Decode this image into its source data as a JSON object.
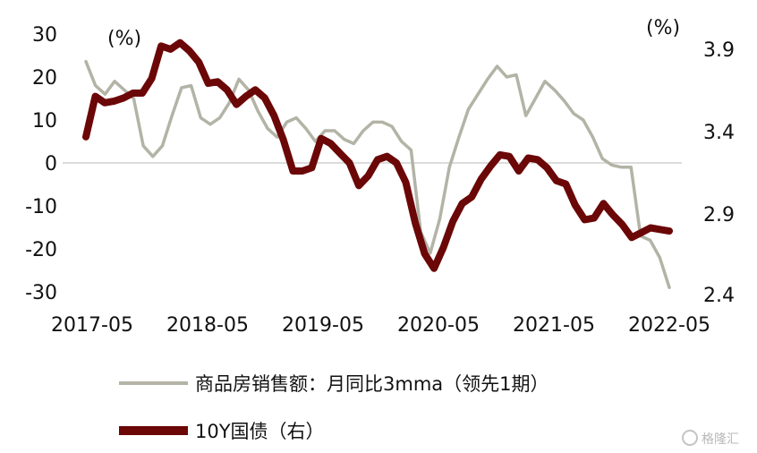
{
  "chart_data": {
    "type": "line",
    "x_tick_labels": [
      "2017-05",
      "2018-05",
      "2019-05",
      "2020-05",
      "2021-05",
      "2022-05"
    ],
    "left_axis": {
      "unit": "(%)",
      "ylim": [
        -30,
        30
      ],
      "ticks": [
        "30",
        "20",
        "10",
        "0",
        "-10",
        "-20",
        "-30"
      ]
    },
    "right_axis": {
      "unit": "(%)",
      "ylim": [
        2.4,
        3.9
      ],
      "ticks": [
        "3.9",
        "3.4",
        "2.9",
        "2.4"
      ]
    },
    "zero_line": true,
    "series": [
      {
        "name": "商品房销售额：月同比3mma（领先1期）",
        "axis": "left",
        "color": "#b3b3a6",
        "values": [
          23.6,
          18,
          16,
          19,
          17,
          15,
          4,
          1.5,
          4,
          11,
          17.5,
          18,
          10.5,
          9,
          10.5,
          14,
          19.5,
          17,
          12,
          8,
          6,
          9.5,
          10.5,
          8,
          5,
          7.5,
          7.5,
          5.5,
          4.5,
          7.5,
          9.5,
          9.5,
          8.5,
          5,
          3,
          -16,
          -21,
          -13,
          -1,
          6,
          12.5,
          16,
          19.5,
          22.5,
          20,
          20.5,
          11,
          15,
          19,
          17,
          14.5,
          11.5,
          10,
          6,
          1,
          -0.5,
          -1,
          -1,
          -17,
          -18,
          -22,
          -29
        ]
      },
      {
        "name": "10Y国债（右）",
        "axis": "right",
        "color": "#6b0707",
        "values": [
          3.36,
          3.61,
          3.57,
          3.58,
          3.6,
          3.63,
          3.63,
          3.72,
          3.92,
          3.9,
          3.94,
          3.89,
          3.82,
          3.69,
          3.7,
          3.65,
          3.56,
          3.61,
          3.65,
          3.6,
          3.49,
          3.34,
          3.15,
          3.15,
          3.17,
          3.35,
          3.32,
          3.26,
          3.2,
          3.06,
          3.12,
          3.22,
          3.24,
          3.2,
          3.08,
          2.83,
          2.64,
          2.55,
          2.68,
          2.84,
          2.95,
          2.99,
          3.1,
          3.18,
          3.25,
          3.24,
          3.15,
          3.23,
          3.22,
          3.17,
          3.09,
          3.07,
          2.94,
          2.85,
          2.86,
          2.95,
          2.88,
          2.82,
          2.74,
          2.77,
          2.8,
          2.79,
          2.78
        ]
      }
    ],
    "legend": {
      "placement": "bottom"
    }
  },
  "watermark": "格隆汇"
}
